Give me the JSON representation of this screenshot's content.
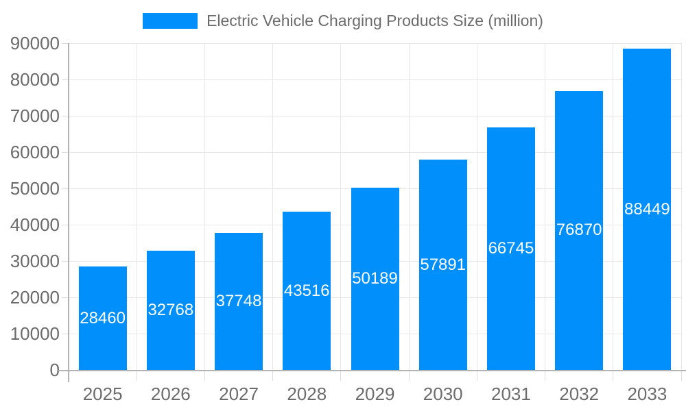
{
  "chart_data": {
    "type": "bar",
    "title": "Electric Vehicle Charging Products Size (million)",
    "categories": [
      "2025",
      "2026",
      "2027",
      "2028",
      "2029",
      "2030",
      "2031",
      "2032",
      "2033"
    ],
    "series": [
      {
        "name": "Electric Vehicle Charging Products Size (million)",
        "values": [
          28460,
          32768,
          37748,
          43516,
          50189,
          57891,
          66745,
          76870,
          88449
        ]
      }
    ],
    "xlabel": "",
    "ylabel": "",
    "ylim": [
      0,
      90000
    ],
    "ytick_step": 10000,
    "ytick_labels": [
      "0",
      "10000",
      "20000",
      "30000",
      "40000",
      "50000",
      "60000",
      "70000",
      "80000",
      "90000"
    ],
    "legend_position": "top",
    "grid": "both",
    "value_label_position": "inside-center",
    "colors": {
      "bar": "#008FFB",
      "value_label": "#ffffff",
      "axis_label": "#6b6b6b",
      "grid_line": "#e7e7e7",
      "axis_line": "#b3b3b3",
      "tick": "#dcdcdc",
      "background": "#ffffff"
    }
  }
}
